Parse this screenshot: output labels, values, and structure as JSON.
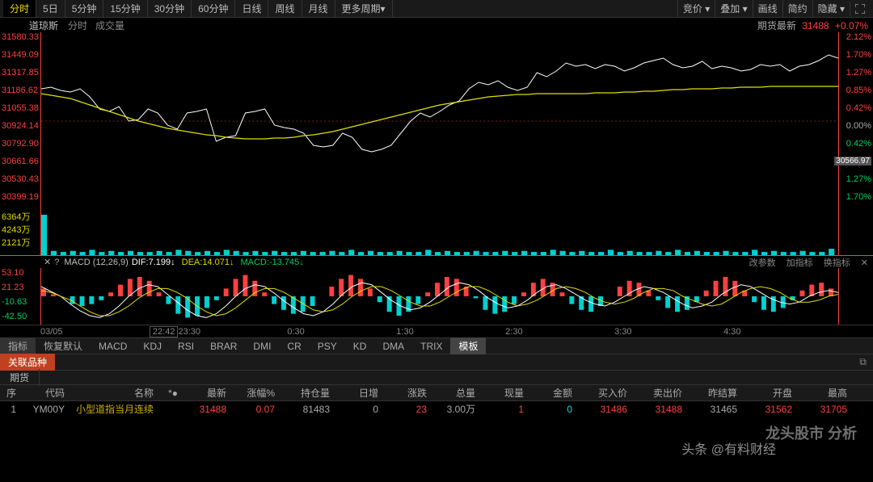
{
  "tabs": [
    "分时",
    "5日",
    "5分钟",
    "15分钟",
    "30分钟",
    "60分钟",
    "日线",
    "周线",
    "月线",
    "更多周期"
  ],
  "active_tab": 0,
  "right_buttons": [
    "竞价",
    "叠加",
    "画线",
    "简约",
    "隐藏"
  ],
  "info": {
    "name": "道琼斯",
    "period": "分时",
    "vol_label": "成交量",
    "futures_label": "期货最新",
    "futures_val": "31488",
    "futures_pct": "+0.07%"
  },
  "chart": {
    "y_left": [
      "31580.33",
      "31449.09",
      "31317.85",
      "31186.62",
      "31055.38",
      "30924.14",
      "30792.90",
      "30661.66",
      "30530.43",
      "30399.19"
    ],
    "y_right": [
      {
        "v": "2.12%",
        "c": "pos"
      },
      {
        "v": "1.70%",
        "c": "pos"
      },
      {
        "v": "1.27%",
        "c": "pos"
      },
      {
        "v": "0.85%",
        "c": "pos"
      },
      {
        "v": "0.42%",
        "c": "pos"
      },
      {
        "v": "0.00%",
        "c": "zero"
      },
      {
        "v": "0.42%",
        "c": "neg"
      },
      {
        "v": "30566.97",
        "c": "tag"
      },
      {
        "v": "1.27%",
        "c": "neg"
      },
      {
        "v": "1.70%",
        "c": "neg"
      }
    ],
    "price_line_color": "#ffffff",
    "ma_line_color": "#e0e000",
    "border_color": "#ff4040",
    "price": [
      70,
      68,
      72,
      74,
      70,
      80,
      95,
      98,
      92,
      110,
      108,
      95,
      100,
      115,
      120,
      100,
      98,
      95,
      135,
      130,
      128,
      100,
      98,
      95,
      115,
      118,
      120,
      125,
      140,
      142,
      140,
      125,
      130,
      145,
      148,
      145,
      140,
      125,
      110,
      100,
      105,
      98,
      90,
      85,
      70,
      62,
      65,
      60,
      68,
      72,
      68,
      50,
      55,
      48,
      38,
      42,
      40,
      45,
      40,
      42,
      48,
      44,
      38,
      35,
      32,
      40,
      44,
      42,
      36,
      45,
      42,
      44,
      48,
      46,
      40,
      42,
      40,
      48,
      42,
      40,
      35,
      28,
      32
    ],
    "ma": [
      76,
      78,
      80,
      82,
      86,
      90,
      94,
      98,
      102,
      106,
      110,
      113,
      116,
      119,
      121,
      123,
      125,
      127,
      128,
      130,
      131,
      132,
      132,
      132,
      131,
      131,
      130,
      128,
      127,
      125,
      123,
      120,
      117,
      114,
      111,
      108,
      105,
      102,
      99,
      96,
      93,
      90,
      88,
      86,
      84,
      82,
      80,
      79,
      78,
      77,
      77,
      76,
      76,
      76,
      76,
      76,
      76,
      75,
      75,
      75,
      74,
      74,
      73,
      73,
      72,
      71,
      71,
      70,
      70,
      70,
      69,
      69,
      68,
      68,
      68,
      67,
      67,
      67,
      67,
      67,
      67,
      67,
      67
    ]
  },
  "volume": {
    "y_left": [
      "6364万",
      "4243万",
      "2121万"
    ],
    "bars": [
      38,
      4,
      3,
      4,
      3,
      5,
      3,
      4,
      3,
      4,
      3,
      3,
      4,
      3,
      5,
      4,
      3,
      4,
      3,
      5,
      4,
      3,
      4,
      3,
      4,
      3,
      3,
      4,
      3,
      3,
      4,
      3,
      5,
      3,
      4,
      3,
      3,
      4,
      3,
      3,
      5,
      3,
      4,
      3,
      3,
      4,
      3,
      3,
      4,
      3,
      4,
      3,
      3,
      5,
      4,
      3,
      4,
      3,
      3,
      5,
      3,
      4,
      3,
      3,
      4,
      3,
      5,
      3,
      4,
      3,
      3,
      4,
      3,
      3,
      5,
      3,
      4,
      3,
      3,
      4,
      3,
      3,
      6
    ],
    "bar_color": "#00d0d0"
  },
  "macd_head": {
    "title": "MACD (12,26,9)",
    "dif": "DIF:7.199↓",
    "dea": "DEA:14.071↓",
    "macd": "MACD:-13.745↓",
    "actions": [
      "改参数",
      "加指标",
      "换指标"
    ]
  },
  "macd": {
    "y_left": [
      {
        "v": "53.10",
        "c": ""
      },
      {
        "v": "21.23",
        "c": ""
      },
      {
        "v": "-10.63",
        "c": "n"
      },
      {
        "v": "-42.50",
        "c": "n"
      }
    ],
    "dif_color": "#ffffff",
    "dea_color": "#e0e000",
    "up_color": "#ff4040",
    "dn_color": "#00d0d0",
    "dif": [
      10,
      5,
      0,
      -8,
      -15,
      -20,
      -22,
      -18,
      -10,
      0,
      8,
      12,
      10,
      2,
      -6,
      -14,
      -20,
      -22,
      -18,
      -10,
      0,
      8,
      12,
      10,
      3,
      -5,
      -12,
      -18,
      -20,
      -16,
      -8,
      2,
      10,
      14,
      12,
      4,
      -4,
      -10,
      -14,
      -12,
      -6,
      2,
      10,
      14,
      12,
      6,
      -2,
      -8,
      -12,
      -10,
      -4,
      4,
      10,
      12,
      8,
      2,
      -4,
      -8,
      -10,
      -6,
      0,
      6,
      10,
      8,
      4,
      -2,
      -8,
      -12,
      -10,
      -6,
      2,
      8,
      12,
      10,
      4,
      -2,
      -6,
      -8,
      -6,
      0,
      4,
      6,
      4
    ],
    "dea": [
      6,
      4,
      0,
      -4,
      -10,
      -16,
      -20,
      -20,
      -16,
      -10,
      -2,
      4,
      8,
      8,
      4,
      -2,
      -10,
      -16,
      -20,
      -18,
      -12,
      -4,
      4,
      8,
      8,
      4,
      -2,
      -8,
      -14,
      -16,
      -14,
      -8,
      0,
      6,
      10,
      10,
      6,
      0,
      -6,
      -10,
      -10,
      -6,
      0,
      6,
      10,
      10,
      6,
      0,
      -6,
      -10,
      -8,
      -4,
      2,
      8,
      10,
      8,
      4,
      -2,
      -6,
      -8,
      -6,
      -2,
      4,
      8,
      8,
      6,
      0,
      -4,
      -8,
      -10,
      -8,
      -2,
      4,
      8,
      10,
      8,
      4,
      -2,
      -6,
      -6,
      -4,
      0,
      2
    ],
    "hist": [
      8,
      2,
      0,
      -8,
      -10,
      -8,
      -4,
      4,
      12,
      18,
      20,
      16,
      4,
      -8,
      -18,
      -22,
      -20,
      -12,
      -4,
      8,
      18,
      22,
      16,
      4,
      -8,
      -14,
      -18,
      -16,
      -10,
      0,
      10,
      18,
      22,
      18,
      8,
      -6,
      -16,
      -20,
      -16,
      -8,
      4,
      14,
      20,
      18,
      10,
      -2,
      -14,
      -18,
      -16,
      -8,
      4,
      14,
      18,
      14,
      4,
      -8,
      -14,
      -16,
      -10,
      0,
      10,
      16,
      14,
      6,
      -4,
      -12,
      -16,
      -14,
      -6,
      6,
      16,
      20,
      16,
      6,
      -6,
      -14,
      -16,
      -12,
      -4,
      6,
      12,
      14,
      8
    ]
  },
  "xaxis": [
    "03/05",
    "22:42",
    "23:30",
    "0:30",
    "1:30",
    "2:30",
    "3:30",
    "4:30"
  ],
  "indicators": [
    "指标",
    "恢复默认",
    "MACD",
    "KDJ",
    "RSI",
    "BRAR",
    "DMI",
    "CR",
    "PSY",
    "KD",
    "DMA",
    "TRIX",
    "模板"
  ],
  "indicator_sel": 2,
  "related_tab": "关联品种",
  "sub_tab": "期货",
  "table": {
    "headers": [
      "序",
      "代码",
      "名称",
      "*●",
      "最新",
      "涨幅%",
      "持仓量",
      "日增",
      "涨跌",
      "总量",
      "现量",
      "金额",
      "买入价",
      "卖出价",
      "昨结算",
      "开盘",
      "最高"
    ],
    "row": {
      "idx": "1",
      "code": "YM00Y",
      "name": "小型道指当月连续",
      "star": "",
      "latest": "31488",
      "pct": "0.07",
      "oi": "81483",
      "dayinc": "0",
      "chg": "23",
      "totvol": "3.00万",
      "curvol": "1",
      "amt": "0",
      "bid": "31486",
      "ask": "31488",
      "prevsettle": "31465",
      "open": "31562",
      "high": "31705"
    }
  },
  "watermarks": {
    "w1": "龙头股市 分析",
    "w2": "头条 @有料财经"
  }
}
